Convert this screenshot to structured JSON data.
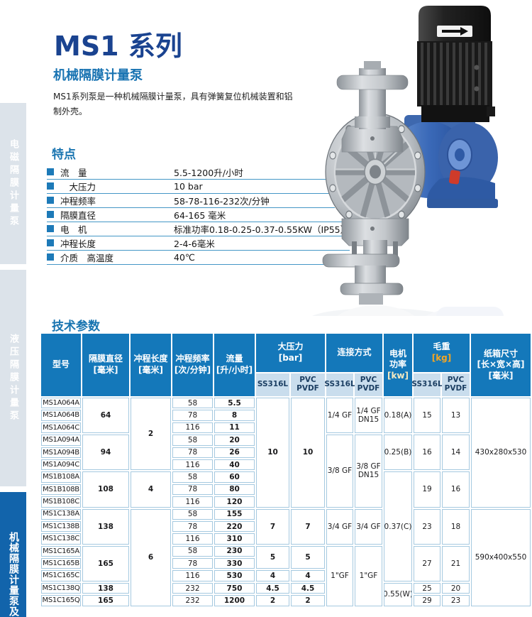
{
  "page": {
    "title": "MS1 系列",
    "subtitle": "机械隔膜计量泵",
    "description": "MS1系列泵是一种机械隔膜计量泵，具有弹簧复位机械装置和铝制外壳。"
  },
  "sidebar": {
    "tabs": [
      {
        "label": "电磁隔膜计量泵"
      },
      {
        "label": "液压隔膜计量泵"
      },
      {
        "label": "机械隔膜计量泵及"
      }
    ]
  },
  "features": {
    "heading": "特点",
    "items": [
      {
        "label": "流　量",
        "value": "5.5-1200升/小时"
      },
      {
        "label": "　大压力",
        "value": "10 bar"
      },
      {
        "label": "冲程频率",
        "value": "58-78-116-232次/分钟"
      },
      {
        "label": "隔膜直径",
        "value": "64-165 毫米"
      },
      {
        "label": "电　机",
        "value": "标准功率0.18-0.25-0.37-0.55KW（IP55）"
      },
      {
        "label": "冲程长度",
        "value": "2-4-6毫米"
      },
      {
        "label": "介质　高温度",
        "value": "40℃"
      }
    ]
  },
  "pump_image": {
    "motor_arrow_icon": "arrow-right",
    "type": "diaphragm-metering-pump-photo"
  },
  "colors": {
    "title_navy": "#1a4390",
    "accent_blue": "#1873b2",
    "table_header_blue": "#1478ba",
    "subheader_light_blue": "#c9dded",
    "sidebar_active_blue": "#1264ab",
    "unit_kg_orange": "#f5a623",
    "unit_kw_cream": "#f6e9c0",
    "cell_border_blue": "#a5c9e0"
  },
  "tech_table": {
    "heading": "技术参数",
    "columns": {
      "model": {
        "label": "型号"
      },
      "dia": {
        "label": "隔膜直径",
        "unit": "[毫米]"
      },
      "stroke": {
        "label": "冲程长度",
        "unit": "[毫米]"
      },
      "freq": {
        "label": "冲程频率",
        "unit": "[次/分钟]"
      },
      "flow": {
        "label": "流量",
        "unit": "[升/小时]"
      },
      "pressure": {
        "label": "大压力",
        "unit": "[bar]"
      },
      "connection": {
        "label": "连接方式"
      },
      "power": {
        "label": "电机\n功率",
        "unit": "[kw]"
      },
      "weight": {
        "label": "毛重",
        "unit": "[kg]"
      },
      "box": {
        "label": "纸箱尺寸",
        "unit": "[长×宽×高]",
        "unit2": "[毫米]"
      }
    },
    "sub": {
      "ss": "SS316L",
      "pvc": "PVC\nPVDF"
    },
    "body": [
      {
        "c": 1,
        "r": 1,
        "t": "MS1A064A"
      },
      {
        "c": 1,
        "r": 2,
        "t": "MS1A064B"
      },
      {
        "c": 1,
        "r": 3,
        "t": "MS1A064C"
      },
      {
        "c": 1,
        "r": 4,
        "t": "MS1A094A"
      },
      {
        "c": 1,
        "r": 5,
        "t": "MS1A094B"
      },
      {
        "c": 1,
        "r": 6,
        "t": "MS1A094C"
      },
      {
        "c": 1,
        "r": 7,
        "t": "MS1B108A"
      },
      {
        "c": 1,
        "r": 8,
        "t": "MS1B108B"
      },
      {
        "c": 1,
        "r": 9,
        "t": "MS1B108C"
      },
      {
        "c": 1,
        "r": 10,
        "t": "MS1C138A"
      },
      {
        "c": 1,
        "r": 11,
        "t": "MS1C138B"
      },
      {
        "c": 1,
        "r": 12,
        "t": "MS1C138C"
      },
      {
        "c": 1,
        "r": 13,
        "t": "MS1C165A"
      },
      {
        "c": 1,
        "r": 14,
        "t": "MS1C165B"
      },
      {
        "c": 1,
        "r": 15,
        "t": "MS1C165C"
      },
      {
        "c": 1,
        "r": 16,
        "t": "MS1C138Q"
      },
      {
        "c": 1,
        "r": 17,
        "t": "MS1C165Q"
      },
      {
        "c": 2,
        "r": 1,
        "s": 3,
        "t": "64",
        "b": true
      },
      {
        "c": 2,
        "r": 4,
        "s": 3,
        "t": "94",
        "b": true
      },
      {
        "c": 2,
        "r": 7,
        "s": 3,
        "t": "108",
        "b": true
      },
      {
        "c": 2,
        "r": 10,
        "s": 3,
        "t": "138",
        "b": true
      },
      {
        "c": 2,
        "r": 13,
        "s": 3,
        "t": "165",
        "b": true
      },
      {
        "c": 2,
        "r": 16,
        "t": "138",
        "b": true
      },
      {
        "c": 2,
        "r": 17,
        "t": "165",
        "b": true
      },
      {
        "c": 3,
        "r": 1,
        "s": 6,
        "t": "2",
        "b": true
      },
      {
        "c": 3,
        "r": 7,
        "s": 3,
        "t": "4",
        "b": true
      },
      {
        "c": 3,
        "r": 10,
        "s": 8,
        "t": "6",
        "b": true
      },
      {
        "c": 4,
        "r": 1,
        "t": "58"
      },
      {
        "c": 4,
        "r": 2,
        "t": "78"
      },
      {
        "c": 4,
        "r": 3,
        "t": "116"
      },
      {
        "c": 4,
        "r": 4,
        "t": "58"
      },
      {
        "c": 4,
        "r": 5,
        "t": "78"
      },
      {
        "c": 4,
        "r": 6,
        "t": "116"
      },
      {
        "c": 4,
        "r": 7,
        "t": "58"
      },
      {
        "c": 4,
        "r": 8,
        "t": "78"
      },
      {
        "c": 4,
        "r": 9,
        "t": "116"
      },
      {
        "c": 4,
        "r": 10,
        "t": "58"
      },
      {
        "c": 4,
        "r": 11,
        "t": "78"
      },
      {
        "c": 4,
        "r": 12,
        "t": "116"
      },
      {
        "c": 4,
        "r": 13,
        "t": "58"
      },
      {
        "c": 4,
        "r": 14,
        "t": "78"
      },
      {
        "c": 4,
        "r": 15,
        "t": "116"
      },
      {
        "c": 4,
        "r": 16,
        "t": "232"
      },
      {
        "c": 4,
        "r": 17,
        "t": "232"
      },
      {
        "c": 5,
        "r": 1,
        "t": "5.5",
        "b": true
      },
      {
        "c": 5,
        "r": 2,
        "t": "8",
        "b": true
      },
      {
        "c": 5,
        "r": 3,
        "t": "11",
        "b": true
      },
      {
        "c": 5,
        "r": 4,
        "t": "20",
        "b": true
      },
      {
        "c": 5,
        "r": 5,
        "t": "26",
        "b": true
      },
      {
        "c": 5,
        "r": 6,
        "t": "40",
        "b": true
      },
      {
        "c": 5,
        "r": 7,
        "t": "60",
        "b": true
      },
      {
        "c": 5,
        "r": 8,
        "t": "80",
        "b": true
      },
      {
        "c": 5,
        "r": 9,
        "t": "120",
        "b": true
      },
      {
        "c": 5,
        "r": 10,
        "t": "155",
        "b": true
      },
      {
        "c": 5,
        "r": 11,
        "t": "220",
        "b": true
      },
      {
        "c": 5,
        "r": 12,
        "t": "310",
        "b": true
      },
      {
        "c": 5,
        "r": 13,
        "t": "230",
        "b": true
      },
      {
        "c": 5,
        "r": 14,
        "t": "330",
        "b": true
      },
      {
        "c": 5,
        "r": 15,
        "t": "530",
        "b": true
      },
      {
        "c": 5,
        "r": 16,
        "t": "750",
        "b": true
      },
      {
        "c": 5,
        "r": 17,
        "t": "1200",
        "b": true
      },
      {
        "c": 6,
        "r": 1,
        "s": 9,
        "t": "10",
        "b": true
      },
      {
        "c": 6,
        "r": 10,
        "s": 3,
        "t": "7",
        "b": true
      },
      {
        "c": 6,
        "r": 13,
        "s": 2,
        "t": "5",
        "b": true
      },
      {
        "c": 6,
        "r": 15,
        "t": "4",
        "b": true
      },
      {
        "c": 6,
        "r": 16,
        "t": "4.5",
        "b": true
      },
      {
        "c": 6,
        "r": 17,
        "t": "2",
        "b": true
      },
      {
        "c": 7,
        "r": 1,
        "s": 9,
        "t": "10",
        "b": true
      },
      {
        "c": 7,
        "r": 10,
        "s": 3,
        "t": "7",
        "b": true
      },
      {
        "c": 7,
        "r": 13,
        "s": 2,
        "t": "5",
        "b": true
      },
      {
        "c": 7,
        "r": 15,
        "t": "4",
        "b": true
      },
      {
        "c": 7,
        "r": 16,
        "t": "4.5",
        "b": true
      },
      {
        "c": 7,
        "r": 17,
        "t": "2",
        "b": true
      },
      {
        "c": 8,
        "r": 1,
        "s": 3,
        "t": "1/4 GF"
      },
      {
        "c": 8,
        "r": 4,
        "s": 6,
        "t": "3/8 GF"
      },
      {
        "c": 8,
        "r": 10,
        "s": 3,
        "t": "3/4 GF"
      },
      {
        "c": 8,
        "r": 13,
        "s": 5,
        "t": "1\"GF"
      },
      {
        "c": 9,
        "r": 1,
        "s": 3,
        "t": "1/4 GF\nDN15"
      },
      {
        "c": 9,
        "r": 4,
        "s": 6,
        "t": "3/8 GF\nDN15"
      },
      {
        "c": 9,
        "r": 10,
        "s": 3,
        "t": "3/4 GF"
      },
      {
        "c": 9,
        "r": 13,
        "s": 5,
        "t": "1\"GF"
      },
      {
        "c": 10,
        "r": 1,
        "s": 3,
        "t": "0.18(A)"
      },
      {
        "c": 10,
        "r": 4,
        "s": 3,
        "t": "0.25(B)"
      },
      {
        "c": 10,
        "r": 7,
        "s": 9,
        "t": "0.37(C)"
      },
      {
        "c": 10,
        "r": 16,
        "s": 2,
        "t": "0.55(W)"
      },
      {
        "c": 11,
        "r": 1,
        "s": 3,
        "t": "15"
      },
      {
        "c": 11,
        "r": 4,
        "s": 3,
        "t": "16"
      },
      {
        "c": 11,
        "r": 7,
        "s": 3,
        "t": "19"
      },
      {
        "c": 11,
        "r": 10,
        "s": 3,
        "t": "23"
      },
      {
        "c": 11,
        "r": 13,
        "s": 3,
        "t": "27"
      },
      {
        "c": 11,
        "r": 16,
        "t": "25"
      },
      {
        "c": 11,
        "r": 17,
        "t": "29"
      },
      {
        "c": 12,
        "r": 1,
        "s": 3,
        "t": "13"
      },
      {
        "c": 12,
        "r": 4,
        "s": 3,
        "t": "14"
      },
      {
        "c": 12,
        "r": 7,
        "s": 3,
        "t": "16"
      },
      {
        "c": 12,
        "r": 10,
        "s": 3,
        "t": "18"
      },
      {
        "c": 12,
        "r": 13,
        "s": 3,
        "t": "21"
      },
      {
        "c": 12,
        "r": 16,
        "t": "20"
      },
      {
        "c": 12,
        "r": 17,
        "t": "23"
      },
      {
        "c": 13,
        "r": 1,
        "s": 9,
        "t": "430x280x530"
      },
      {
        "c": 13,
        "r": 10,
        "s": 8,
        "t": "590x400x550"
      }
    ]
  }
}
